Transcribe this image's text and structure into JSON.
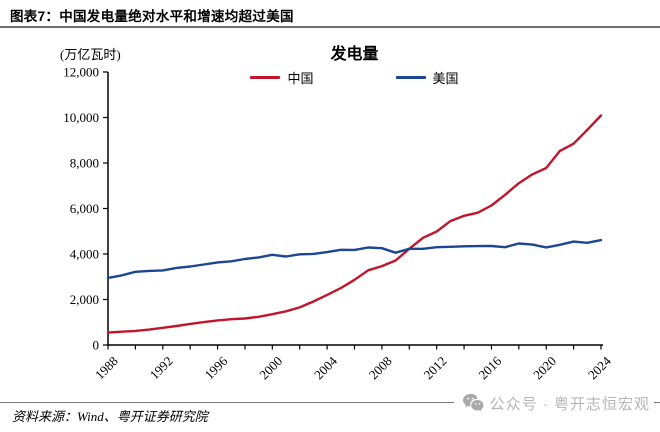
{
  "header": {
    "title": "图表7：中国发电量绝对水平和增速均超过美国"
  },
  "chart_data": {
    "type": "line",
    "title": "发电量",
    "unit_label": "(万亿瓦时)",
    "grid": false,
    "legend_position": "top-center",
    "ylim": [
      0,
      12000
    ],
    "ytick_interval": 2000,
    "xtick_interval": 2,
    "xlabel_interval": 4,
    "years": [
      1988,
      1989,
      1990,
      1991,
      1992,
      1993,
      1994,
      1995,
      1996,
      1997,
      1998,
      1999,
      2000,
      2001,
      2002,
      2003,
      2004,
      2005,
      2006,
      2007,
      2008,
      2009,
      2010,
      2011,
      2012,
      2013,
      2014,
      2015,
      2016,
      2017,
      2018,
      2019,
      2020,
      2021,
      2022,
      2023,
      2024
    ],
    "series": [
      {
        "name": "中国",
        "color": "#c1152b",
        "values": [
          545,
          585,
          621,
          678,
          754,
          836,
          928,
          1008,
          1081,
          1136,
          1167,
          1239,
          1356,
          1481,
          1654,
          1911,
          2203,
          2500,
          2866,
          3282,
          3467,
          3715,
          4228,
          4713,
          4988,
          5447,
          5680,
          5815,
          6133,
          6604,
          7111,
          7504,
          7779,
          8534,
          8849,
          9456,
          10087
        ]
      },
      {
        "name": "美国",
        "color": "#1c4693",
        "values": [
          2950,
          3060,
          3218,
          3255,
          3280,
          3390,
          3450,
          3538,
          3630,
          3680,
          3780,
          3850,
          3965,
          3890,
          3985,
          4006,
          4084,
          4186,
          4179,
          4285,
          4254,
          4058,
          4230,
          4228,
          4298,
          4317,
          4337,
          4347,
          4352,
          4297,
          4461,
          4411,
          4288,
          4406,
          4547,
          4494,
          4609
        ]
      }
    ]
  },
  "footer": {
    "source": "资料来源：Wind、粤开证券研究院",
    "watermark_text": "公众号 · 粤开志恒宏观"
  },
  "colors": {
    "china_line": "#c1152b",
    "us_line": "#1c4693",
    "axis": "#000000",
    "rule": "#6e6e6e",
    "watermark": "#b5b5b5"
  }
}
